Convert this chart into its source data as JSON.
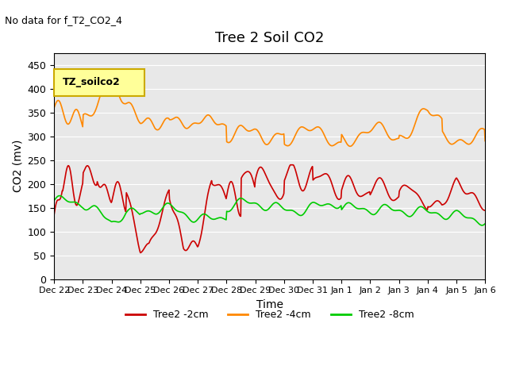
{
  "title": "Tree 2 Soil CO2",
  "subtitle": "No data for f_T2_CO2_4",
  "xlabel": "Time",
  "ylabel": "CO2 (mv)",
  "ylim": [
    0,
    475
  ],
  "yticks": [
    0,
    50,
    100,
    150,
    200,
    250,
    300,
    350,
    400,
    450
  ],
  "legend_label": "TZ_soilco2",
  "legend_box_color": "#ffff99",
  "legend_box_edge": "#ccaa00",
  "series_colors": {
    "2cm": "#cc0000",
    "4cm": "#ff8800",
    "8cm": "#00cc00"
  },
  "bg_color": "#e8e8e8",
  "x_tick_labels": [
    "Dec 22",
    "Dec 23",
    "Dec 24",
    "Dec 25",
    "Dec 26",
    "Dec 27",
    "Dec 28",
    "Dec 29",
    "Dec 30",
    "Dec 31",
    "Jan 1",
    "Jan 2",
    "Jan 3",
    "Jan 4",
    "Jan 5",
    "Jan 6"
  ],
  "line_width": 1.2
}
